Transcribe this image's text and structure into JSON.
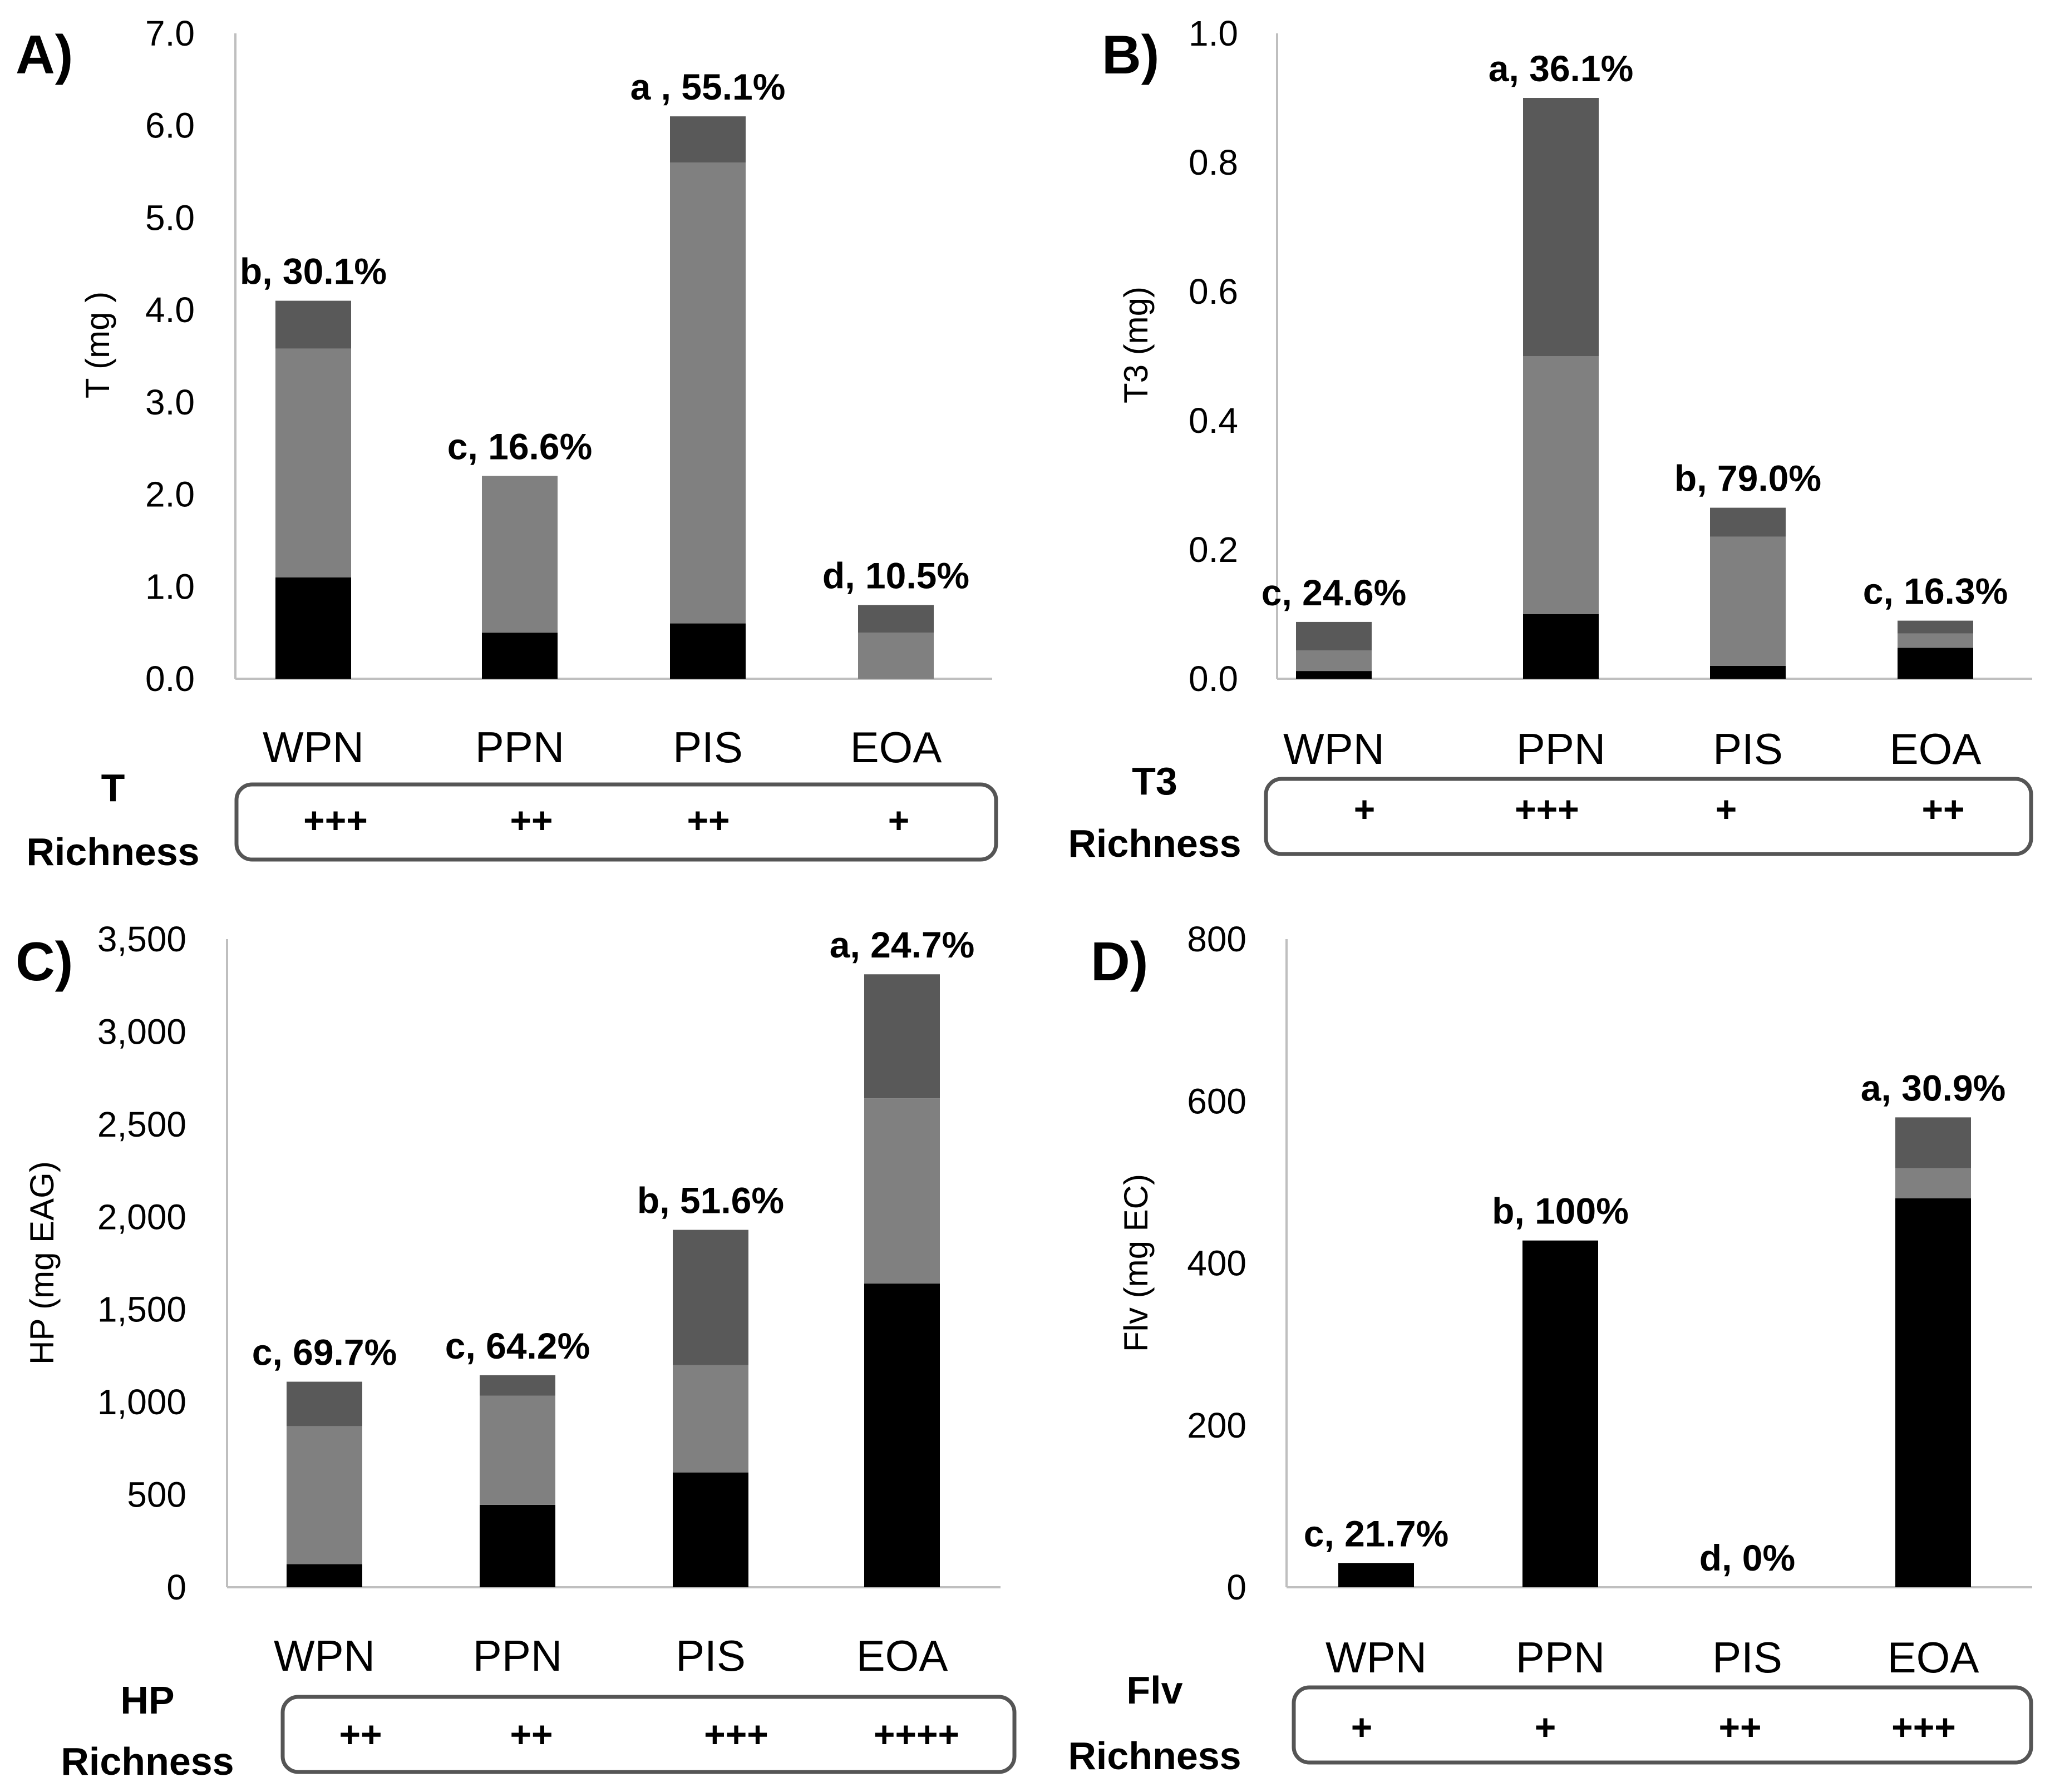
{
  "colors": {
    "segment_bottom": "#000000",
    "segment_middle": "#808080",
    "segment_top": "#595959",
    "axis": "#bfbfbf",
    "box_border": "#555555"
  },
  "chart_data": [
    {
      "panel": "A)",
      "type": "bar",
      "stacked": true,
      "ylabel": "T (mg )",
      "ylim": [
        0,
        7.0
      ],
      "yticks": [
        "0.0",
        "1.0",
        "2.0",
        "3.0",
        "4.0",
        "5.0",
        "6.0",
        "7.0"
      ],
      "categories": [
        "WPN",
        "PPN",
        "PIS",
        "EOA"
      ],
      "series": [
        {
          "name": "bottom",
          "values": [
            1.1,
            0.5,
            0.6,
            0.0
          ]
        },
        {
          "name": "middle",
          "values": [
            2.48,
            1.7,
            5.0,
            0.5
          ]
        },
        {
          "name": "top",
          "values": [
            0.52,
            0.0,
            0.5,
            0.3
          ]
        }
      ],
      "data_labels": [
        "b, 30.1%",
        "c, 16.6%",
        "a , 55.1%",
        "d, 10.5%"
      ],
      "richness_title": "T",
      "richness_label": "Richness",
      "richness": [
        "+++",
        "++",
        "++",
        "+"
      ]
    },
    {
      "panel": "B)",
      "type": "bar",
      "stacked": true,
      "ylabel": "T3 (mg)",
      "ylim": [
        0,
        1.0
      ],
      "yticks": [
        "0.0",
        "0.2",
        "0.4",
        "0.6",
        "0.8",
        "1.0"
      ],
      "categories": [
        "WPN",
        "PPN",
        "PIS",
        "EOA"
      ],
      "series": [
        {
          "name": "bottom",
          "values": [
            0.012,
            0.1,
            0.02,
            0.048
          ]
        },
        {
          "name": "middle",
          "values": [
            0.032,
            0.4,
            0.2,
            0.022
          ]
        },
        {
          "name": "top",
          "values": [
            0.044,
            0.4,
            0.045,
            0.02
          ]
        }
      ],
      "data_labels": [
        "c, 24.6%",
        "a, 36.1%",
        "b, 79.0%",
        "c, 16.3%"
      ],
      "richness_title": "T3",
      "richness_label": "Richness",
      "richness": [
        "+",
        "+++",
        "+",
        "++"
      ]
    },
    {
      "panel": "C)",
      "type": "bar",
      "stacked": true,
      "ylabel": "HP (mg EAG)",
      "ylim": [
        0,
        3500
      ],
      "yticks": [
        "0",
        "500",
        "1,000",
        "1,500",
        "2,000",
        "2,500",
        "3,000",
        "3,500"
      ],
      "categories": [
        "WPN",
        "PPN",
        "PIS",
        "EOA"
      ],
      "series": [
        {
          "name": "bottom",
          "values": [
            125,
            445,
            620,
            1640
          ]
        },
        {
          "name": "middle",
          "values": [
            745,
            590,
            580,
            1000
          ]
        },
        {
          "name": "top",
          "values": [
            240,
            110,
            730,
            670
          ]
        }
      ],
      "data_labels": [
        "c, 69.7%",
        "c, 64.2%",
        "b, 51.6%",
        "a, 24.7%"
      ],
      "richness_title": "HP",
      "richness_label": "Richness",
      "richness": [
        "++",
        "++",
        "+++",
        "++++"
      ]
    },
    {
      "panel": "D)",
      "type": "bar",
      "stacked": true,
      "ylabel": "Flv (mg EC)",
      "ylim": [
        0,
        800
      ],
      "yticks": [
        "0",
        "200",
        "400",
        "600",
        "800"
      ],
      "categories": [
        "WPN",
        "PPN",
        "PIS",
        "EOA"
      ],
      "series": [
        {
          "name": "bottom",
          "values": [
            30,
            428,
            0,
            480
          ]
        },
        {
          "name": "middle",
          "values": [
            0,
            0,
            0,
            37
          ]
        },
        {
          "name": "top",
          "values": [
            0,
            0,
            0,
            63
          ]
        }
      ],
      "data_labels": [
        "c, 21.7%",
        "b, 100%",
        "d, 0%",
        "a, 30.9%"
      ],
      "richness_title": "Flv",
      "richness_label": "Richness",
      "richness": [
        "+",
        "+",
        "++",
        "+++"
      ]
    }
  ]
}
